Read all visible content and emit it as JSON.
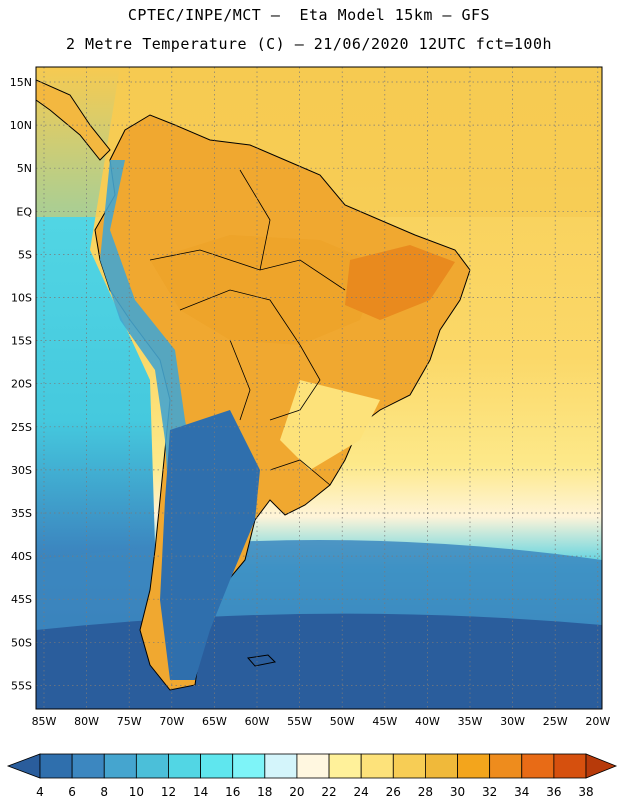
{
  "title_line1": "CPTEC/INPE/MCT –  Eta Model 15km – GFS",
  "title_line2": "2 Metre Temperature (C) – 21/06/2020 12UTC fct=100h",
  "lat_labels": [
    "15N",
    "10N",
    "5N",
    "EQ",
    "5S",
    "10S",
    "15S",
    "20S",
    "25S",
    "30S",
    "35S",
    "40S",
    "45S",
    "50S",
    "55S"
  ],
  "lon_labels": [
    "85W",
    "80W",
    "75W",
    "70W",
    "65W",
    "60W",
    "55W",
    "50W",
    "45W",
    "40W",
    "35W",
    "30W",
    "25W",
    "20W"
  ],
  "colorbar": {
    "values": [
      "4",
      "6",
      "8",
      "10",
      "12",
      "14",
      "16",
      "18",
      "20",
      "22",
      "24",
      "26",
      "28",
      "30",
      "32",
      "34",
      "36",
      "38"
    ],
    "colors": [
      "#2a5d9c",
      "#2f6fad",
      "#3c87c0",
      "#45a5cf",
      "#4bbfd9",
      "#52d6e4",
      "#5fe6ee",
      "#7ef4f8",
      "#d4f5fb",
      "#fff7e0",
      "#fff19a",
      "#fde27a",
      "#f7cd55",
      "#f0b93a",
      "#f3a51c",
      "#ee8c1d",
      "#e86b16",
      "#d6500e",
      "#b73a0a"
    ]
  },
  "palette": {
    "ocean_cold": "#2a5d9c",
    "ocean_mid": "#4bbfd9",
    "ocean_cyan": "#5fe6ee",
    "warm_sea": "#f7cd55",
    "land_hot": "#f0a830",
    "land_warm": "#f3b840"
  }
}
